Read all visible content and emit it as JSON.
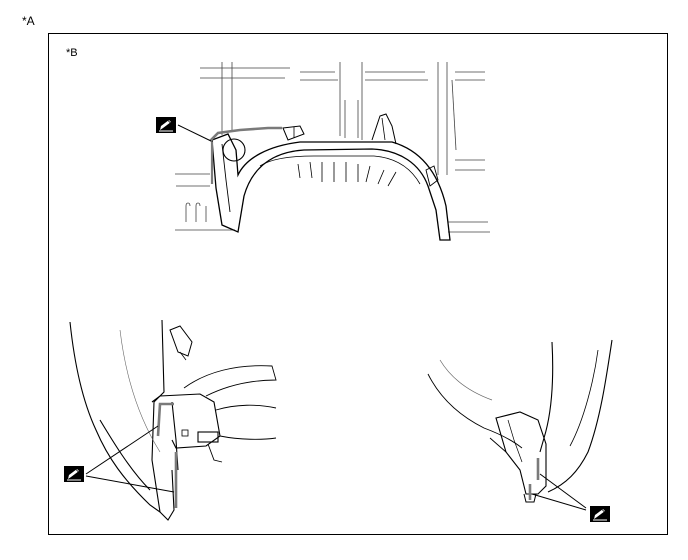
{
  "figure": {
    "outer_label": "*A",
    "inner_label": "*B"
  },
  "icons": [
    "pencil-note-icon",
    "pencil-note-icon",
    "pencil-note-icon"
  ],
  "colors": {
    "line": "#000000",
    "thin_line": "#444444",
    "sealer_highlight": "#7a7a7a",
    "background": "#ffffff"
  }
}
